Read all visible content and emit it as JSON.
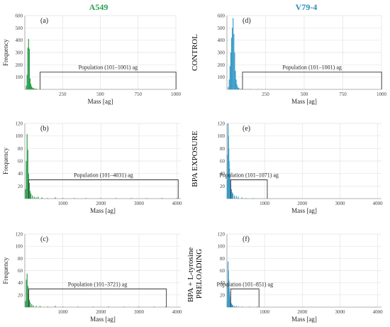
{
  "column_titles": [
    {
      "text": "A549",
      "color": "#2e9e4f"
    },
    {
      "text": "V79-4",
      "color": "#2a8fb8"
    }
  ],
  "row_labels": [
    "CONTROL",
    "BPA EXPOSURE",
    "BPA + L-tyrosine PRELOADING"
  ],
  "colors": {
    "a549": "#2e9e4f",
    "v79": "#3d9cc9",
    "grid": "#e3e3e3",
    "axis": "#9a9a9a",
    "bracket": "#333333"
  },
  "chart_data": [
    {
      "panel": "(a)",
      "type": "bar",
      "cell_line": "A549",
      "title": "",
      "xlabel": "Mass [ag]",
      "ylabel": "Frequency",
      "xlim": [
        0,
        1000
      ],
      "xticks": [
        250,
        500,
        750,
        1000
      ],
      "ylim": [
        0,
        600
      ],
      "yticks": [
        100,
        200,
        300,
        400,
        500,
        600
      ],
      "bar_width": 5,
      "x": [
        10,
        15,
        20,
        25,
        30,
        35,
        40,
        45,
        50,
        55,
        60,
        65,
        70,
        75,
        80
      ],
      "values": [
        30,
        120,
        340,
        410,
        330,
        90,
        45,
        25,
        15,
        10,
        8,
        6,
        5,
        4,
        3
      ],
      "population": {
        "label": "Population (101–1001) ag",
        "x_start": 101,
        "x_end": 1001,
        "y": 140
      }
    },
    {
      "panel": "(b)",
      "type": "bar",
      "cell_line": "A549",
      "title": "",
      "xlabel": "Mass [ag]",
      "ylabel": "Frequency",
      "xlim": [
        0,
        4100
      ],
      "xticks": [
        1000,
        2000,
        3000,
        4000
      ],
      "ylim": [
        0,
        120
      ],
      "yticks": [
        20,
        40,
        60,
        80,
        100,
        120
      ],
      "bar_width": 10,
      "x": [
        20,
        40,
        60,
        80,
        100,
        120,
        140,
        160,
        200,
        250,
        300,
        350,
        450,
        600,
        800,
        1000,
        1300,
        1600,
        2000,
        2400,
        2800,
        3200,
        3600,
        4000
      ],
      "values": [
        15,
        60,
        103,
        78,
        40,
        25,
        12,
        8,
        5,
        3,
        2,
        3,
        2,
        1,
        2,
        1,
        1,
        1,
        1,
        1,
        1,
        1,
        1,
        1
      ],
      "population": {
        "label": "Population (101–4031) ag",
        "x_start": 101,
        "x_end": 4031,
        "y": 30
      }
    },
    {
      "panel": "(c)",
      "type": "bar",
      "cell_line": "A549",
      "title": "",
      "xlabel": "Mass [ag]",
      "ylabel": "Frequency",
      "xlim": [
        0,
        4100
      ],
      "xticks": [
        1000,
        2000,
        3000,
        4000
      ],
      "ylim": [
        0,
        120
      ],
      "yticks": [
        20,
        40,
        60,
        80,
        100,
        120
      ],
      "bar_width": 10,
      "x": [
        20,
        40,
        60,
        80,
        100,
        120,
        140,
        180,
        220,
        300,
        400,
        600,
        800,
        1000,
        1400,
        1800,
        2200,
        2600,
        3000,
        3400,
        3700
      ],
      "values": [
        10,
        45,
        55,
        35,
        22,
        12,
        8,
        5,
        3,
        2,
        2,
        1,
        2,
        1,
        1,
        1,
        1,
        1,
        1,
        1,
        1
      ],
      "population": {
        "label": "Population (101–3721) ag",
        "x_start": 101,
        "x_end": 3721,
        "y": 30
      }
    },
    {
      "panel": "(d)",
      "type": "bar",
      "cell_line": "V79-4",
      "title": "",
      "xlabel": "Mass [ag]",
      "ylabel": "",
      "xlim": [
        0,
        1000
      ],
      "xticks": [
        250,
        500,
        750,
        1000
      ],
      "ylim": [
        0,
        600
      ],
      "yticks": [
        100,
        200,
        300,
        400,
        500,
        600
      ],
      "bar_width": 5,
      "x": [
        10,
        15,
        20,
        25,
        30,
        35,
        40,
        45,
        50,
        55,
        60,
        65,
        70,
        75,
        80,
        90,
        100,
        120,
        150,
        200
      ],
      "values": [
        20,
        80,
        190,
        300,
        420,
        500,
        580,
        450,
        300,
        150,
        80,
        40,
        20,
        12,
        8,
        6,
        4,
        3,
        2,
        1
      ],
      "population": {
        "label": "Population (101–1001) ag",
        "x_start": 101,
        "x_end": 1001,
        "y": 140
      }
    },
    {
      "panel": "(e)",
      "type": "bar",
      "cell_line": "V79-4",
      "title": "",
      "xlabel": "Mass [ag]",
      "ylabel": "",
      "xlim": [
        0,
        4100
      ],
      "xticks": [
        1000,
        2000,
        3000,
        4000
      ],
      "ylim": [
        0,
        120
      ],
      "yticks": [
        20,
        40,
        60,
        80,
        100,
        120
      ],
      "bar_width": 10,
      "x": [
        10,
        20,
        30,
        40,
        50,
        60,
        70,
        80,
        90,
        100,
        120,
        140,
        160,
        200,
        250,
        300,
        400,
        500,
        700
      ],
      "values": [
        30,
        70,
        120,
        100,
        80,
        60,
        48,
        40,
        30,
        22,
        15,
        10,
        8,
        5,
        4,
        3,
        2,
        1,
        1
      ],
      "population": {
        "label": "Population (101–1071) ag",
        "x_start": 101,
        "x_end": 1071,
        "y": 30
      }
    },
    {
      "panel": "(f)",
      "type": "bar",
      "cell_line": "V79-4",
      "title": "",
      "xlabel": "Mass [ag]",
      "ylabel": "",
      "xlim": [
        0,
        4100
      ],
      "xticks": [
        1000,
        2000,
        3000,
        4000
      ],
      "ylim": [
        0,
        120
      ],
      "yticks": [
        20,
        40,
        60,
        80,
        100,
        120
      ],
      "bar_width": 10,
      "x": [
        10,
        20,
        30,
        40,
        50,
        60,
        70,
        80,
        90,
        100,
        120,
        140,
        160,
        200,
        250,
        300,
        400,
        600,
        800
      ],
      "values": [
        10,
        40,
        75,
        60,
        45,
        32,
        25,
        18,
        12,
        8,
        6,
        4,
        3,
        2,
        2,
        1,
        1,
        1,
        1
      ],
      "population": {
        "label": "Population (101–851) ag",
        "x_start": 101,
        "x_end": 851,
        "y": 30
      }
    }
  ]
}
